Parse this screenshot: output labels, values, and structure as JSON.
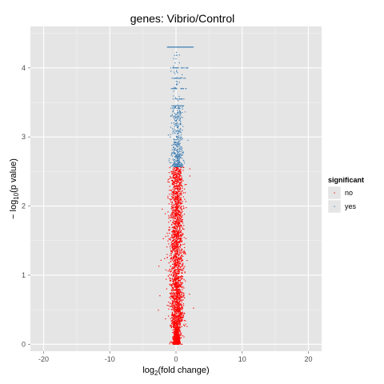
{
  "chart_data": {
    "type": "scatter",
    "title": "genes: Vibrio/Control",
    "xlabel_base": "log",
    "xlabel_sub": "2",
    "xlabel_rest": "(fold change)",
    "ylabel_pre": "− log",
    "ylabel_sub": "10",
    "ylabel_rest": "(p value)",
    "xlim": [
      -22,
      22
    ],
    "ylim": [
      -0.1,
      4.6
    ],
    "x_ticks": [
      -20,
      -10,
      0,
      10,
      20
    ],
    "y_ticks": [
      0,
      1,
      2,
      3,
      4
    ],
    "x_tick_labels": [
      "-20",
      "-10",
      "0",
      "10",
      "20"
    ],
    "y_tick_labels": [
      "0",
      "1",
      "2",
      "3",
      "4"
    ],
    "grid": true,
    "background": "#e5e5e5",
    "legend": {
      "title": "significant",
      "position": "right",
      "entries": [
        {
          "label": "no",
          "color": "#ff0000"
        },
        {
          "label": "yes",
          "color": "#4682b4"
        }
      ]
    },
    "series": [
      {
        "name": "no",
        "color": "#ff0000",
        "y_range": [
          0,
          2.57
        ],
        "x_center": 0.1,
        "x_spread": 0.5,
        "x_max_abs": 2.8
      },
      {
        "name": "yes",
        "color": "#4682b4",
        "y_range": [
          2.57,
          4.3
        ],
        "x_center": 0.2,
        "x_spread": 0.45,
        "x_max_abs": 2.6,
        "rows": [
          {
            "y": 4.3,
            "x_min": -1.3,
            "x_max": 2.6
          },
          {
            "y": 4.0,
            "x_min": -0.8,
            "x_max": 1.8
          },
          {
            "y": 3.85,
            "x_min": -0.6,
            "x_max": 1.4
          },
          {
            "y": 3.7,
            "x_min": -0.7,
            "x_max": 1.7
          },
          {
            "y": 3.55,
            "x_min": -0.5,
            "x_max": 1.2
          },
          {
            "y": 3.45,
            "x_min": -0.6,
            "x_max": 1.1
          }
        ]
      }
    ]
  }
}
